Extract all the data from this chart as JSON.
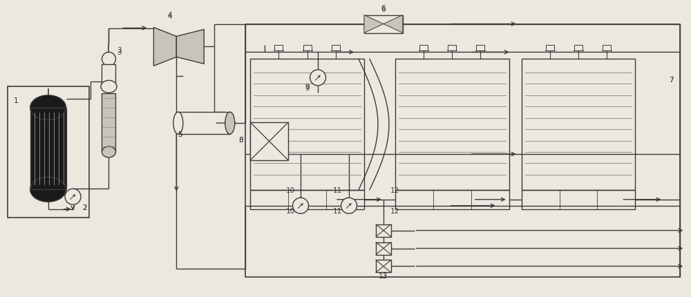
{
  "bg_color": "#ece8e0",
  "line_color": "#3a3a3a",
  "gray_fill": "#c8c4bc",
  "light_fill": "#dedad2",
  "dark_fill": "#1a1a1a",
  "med_fill": "#d8d4cc"
}
